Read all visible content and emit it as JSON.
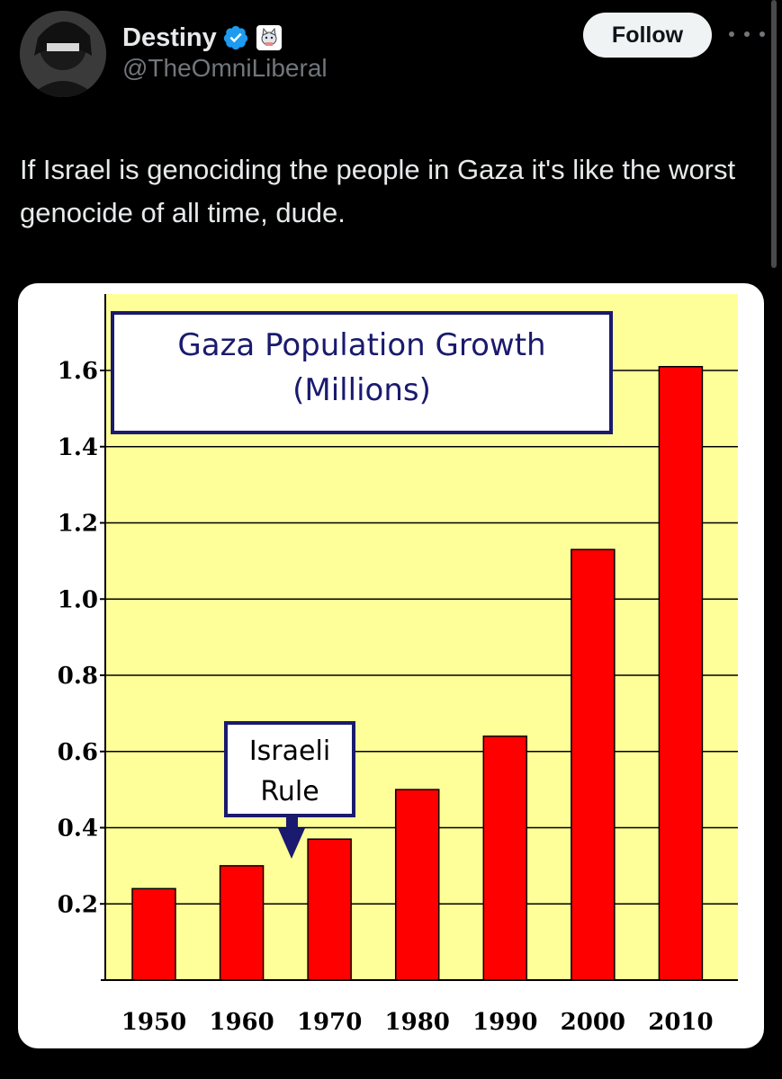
{
  "author": {
    "display_name": "Destiny",
    "handle": "@TheOmniLiberal",
    "verified_icon": "verified-badge-icon",
    "affiliation_icon": "affiliate-badge-icon"
  },
  "actions": {
    "follow_label": "Follow",
    "more_icon": "more-options-icon"
  },
  "tweet": {
    "text": "If Israel is genociding the people in Gaza it's like the worst genocide of all time, dude."
  },
  "colors": {
    "background": "#000000",
    "plot_background": "#ffff99",
    "bar": "#ff0000",
    "title_border": "#1a1a6e",
    "verified": "#1d9bf0"
  },
  "chart_data": {
    "type": "bar",
    "title": "Gaza Population Growth",
    "subtitle": "(Millions)",
    "categories": [
      "1950",
      "1960",
      "1970",
      "1980",
      "1990",
      "2000",
      "2010"
    ],
    "values": [
      0.24,
      0.3,
      0.37,
      0.5,
      0.64,
      1.13,
      1.61
    ],
    "ytick_labels": [
      "1.6",
      "1.4",
      "1.2",
      "1.0",
      "0.8",
      "0.6",
      "0.4",
      "0.2"
    ],
    "ylim": [
      0,
      1.6
    ],
    "grid": true,
    "annotation": {
      "line1": "Israeli",
      "line2": "Rule",
      "category": "1970"
    }
  }
}
